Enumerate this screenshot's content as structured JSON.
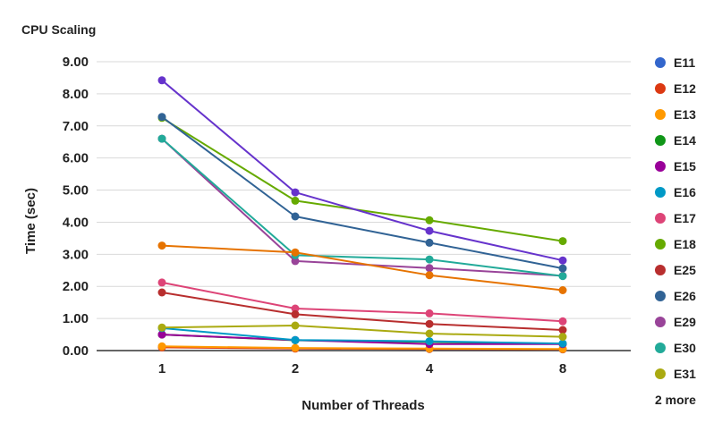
{
  "chart_data": {
    "type": "line",
    "title": "CPU Scaling",
    "xlabel": "Number of Threads",
    "ylabel": "Time (sec)",
    "categories": [
      "1",
      "2",
      "4",
      "8"
    ],
    "ylim": [
      0,
      9
    ],
    "yticks": [
      "0.00",
      "1.00",
      "2.00",
      "3.00",
      "4.00",
      "5.00",
      "6.00",
      "7.00",
      "8.00",
      "9.00"
    ],
    "grid": true,
    "legend_position": "right",
    "legend_more": "2 more",
    "series": [
      {
        "name": "E11",
        "color": "#3366cc",
        "values": [
          0.12,
          0.07,
          0.05,
          0.04
        ]
      },
      {
        "name": "E12",
        "color": "#dc3912",
        "values": [
          0.1,
          0.06,
          0.05,
          0.04
        ]
      },
      {
        "name": "E13",
        "color": "#ff9900",
        "values": [
          0.13,
          0.08,
          0.06,
          0.05
        ]
      },
      {
        "name": "E14",
        "color": "#109618",
        "values": [
          0.5,
          0.32,
          0.27,
          0.21
        ]
      },
      {
        "name": "E15",
        "color": "#990099",
        "values": [
          0.5,
          0.33,
          0.2,
          0.2
        ]
      },
      {
        "name": "E16",
        "color": "#0099c6",
        "values": [
          0.7,
          0.33,
          0.29,
          0.22
        ]
      },
      {
        "name": "E17",
        "color": "#dd4477",
        "values": [
          2.12,
          1.31,
          1.16,
          0.91
        ]
      },
      {
        "name": "E18",
        "color": "#66aa00",
        "values": [
          7.25,
          4.67,
          4.06,
          3.41
        ]
      },
      {
        "name": "E25",
        "color": "#b82e2e",
        "values": [
          1.81,
          1.13,
          0.83,
          0.64
        ]
      },
      {
        "name": "E26",
        "color": "#316395",
        "values": [
          7.28,
          4.18,
          3.36,
          2.56
        ]
      },
      {
        "name": "E29",
        "color": "#994499",
        "values": [
          6.6,
          2.79,
          2.57,
          2.33
        ]
      },
      {
        "name": "E30",
        "color": "#22aa99",
        "values": [
          6.6,
          2.97,
          2.84,
          2.32
        ]
      },
      {
        "name": "E31",
        "color": "#aaaa11",
        "values": [
          0.72,
          0.78,
          0.53,
          0.43
        ]
      },
      {
        "name": "",
        "color": "#6633cc",
        "values": [
          8.42,
          4.93,
          3.73,
          2.81
        ]
      },
      {
        "name": "",
        "color": "#e67300",
        "values": [
          3.27,
          3.06,
          2.35,
          1.88
        ]
      }
    ]
  }
}
